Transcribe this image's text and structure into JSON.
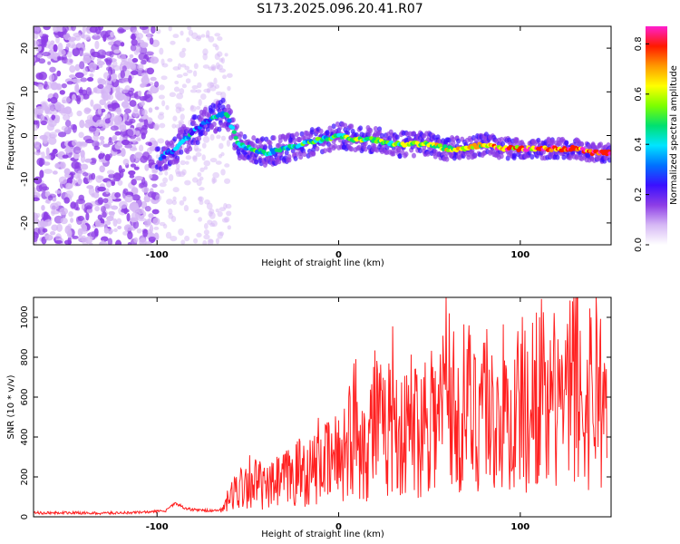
{
  "title": "S173.2025.096.20.41.R07",
  "chart_data": [
    {
      "type": "heatmap",
      "xlabel": "Height of straight line (km)",
      "ylabel": "Frequency (Hz)",
      "xlim": [
        -168,
        150
      ],
      "ylim": [
        -25,
        25
      ],
      "x_ticks": [
        -100,
        0,
        100
      ],
      "y_ticks": [
        -20,
        -10,
        0,
        10,
        20
      ],
      "colorbar": {
        "label": "Normalized spectral amplitude",
        "ticks": [
          "0.0",
          "0.2",
          "0.4",
          "0.6",
          "0.8"
        ],
        "range": [
          0,
          0.87
        ],
        "colormap": [
          "#ffffff",
          "#d6b8f5",
          "#8d3de6",
          "#3a10ff",
          "#0072ff",
          "#00e5ff",
          "#00e070",
          "#7cff00",
          "#ffff00",
          "#ff9900",
          "#ff1a00",
          "#ff1fcf"
        ]
      },
      "ridge": {
        "x": [
          -98,
          -90,
          -80,
          -70,
          -62,
          -55,
          -48,
          -40,
          -30,
          -20,
          -10,
          0,
          10,
          20,
          30,
          40,
          50,
          60,
          70,
          80,
          90,
          100,
          110,
          120,
          130,
          140,
          148
        ],
        "frequency": [
          -5,
          -3,
          1,
          4,
          5,
          -2,
          -3,
          -4,
          -3,
          -2,
          -1,
          0,
          -1,
          -1,
          -2,
          -2,
          -2,
          -3,
          -3,
          -2,
          -3,
          -3,
          -3,
          -3,
          -3,
          -4,
          -4
        ]
      },
      "grid": false
    },
    {
      "type": "line",
      "xlabel": "Height of straight line (km)",
      "ylabel": "SNR (10 * v/v)",
      "xlim": [
        -168,
        150
      ],
      "ylim": [
        0,
        1100
      ],
      "x_ticks": [
        -100,
        0,
        100
      ],
      "y_ticks": [
        0,
        200,
        400,
        600,
        800,
        1000
      ],
      "color": "#ff2020",
      "series": [
        {
          "x": [
            -168,
            -150,
            -130,
            -110,
            -95,
            -90,
            -85,
            -80,
            -70,
            -65,
            -60,
            -55,
            -50,
            -45,
            -40,
            -35,
            -30,
            -25,
            -20,
            -15,
            -10,
            -5,
            0,
            5,
            10,
            15,
            20,
            25,
            30,
            35,
            40,
            45,
            50,
            55,
            60,
            65,
            70,
            75,
            80,
            85,
            90,
            95,
            100,
            105,
            110,
            115,
            120,
            125,
            130,
            135,
            140,
            145,
            148
          ],
          "values": [
            20,
            20,
            18,
            22,
            30,
            70,
            45,
            35,
            30,
            35,
            120,
            200,
            260,
            230,
            180,
            220,
            250,
            280,
            320,
            300,
            400,
            350,
            420,
            500,
            650,
            450,
            700,
            520,
            760,
            500,
            650,
            580,
            780,
            600,
            1050,
            550,
            800,
            650,
            900,
            600,
            750,
            580,
            800,
            650,
            1000,
            600,
            850,
            700,
            1000,
            650,
            950,
            850,
            500
          ]
        }
      ],
      "grid": false
    }
  ]
}
